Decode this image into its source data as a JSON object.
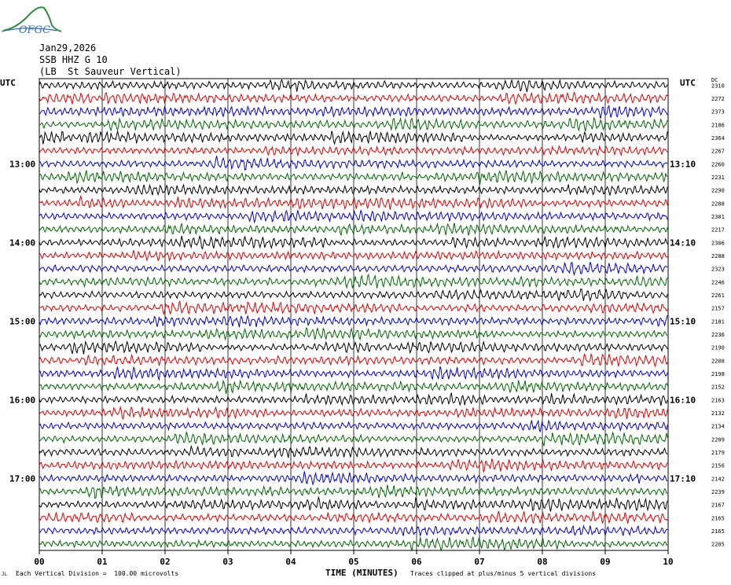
{
  "logo_text": "OFGC",
  "header": {
    "date": "Jan29,2026",
    "channel": "SSB HHZ G 10",
    "station": "(LB  St Sauveur Vertical)"
  },
  "left_axis_label": "UTC",
  "right_axis_label": "UTC",
  "dc_label": "DC",
  "footer": {
    "x_axis_title": "TIME (MINUTES)",
    "scale_note": "Each Vertical Division =  100.00 microvolts",
    "clip_note": "Traces clipped at plus/minus 5 vertical divisions",
    "corner_mark": "JL"
  },
  "colors": [
    "#000000",
    "#dd0000",
    "#0000cc",
    "#006600"
  ],
  "chart_data": {
    "type": "line",
    "description_of_traces": "helicorder, 36 rows of 10 minutes",
    "x_ticks": [
      "00",
      "01",
      "02",
      "03",
      "04",
      "05",
      "06",
      "07",
      "08",
      "09",
      "10"
    ],
    "xlim": [
      0,
      10
    ],
    "rows": 36,
    "left_time_labels": [
      "13:00",
      "14:00",
      "15:00",
      "16:00",
      "17:00"
    ],
    "left_label_rows": [
      6,
      12,
      18,
      24,
      30
    ],
    "right_time_labels": [
      "13:10",
      "14:10",
      "15:10",
      "16:10",
      "17:10"
    ],
    "right_label_rows": [
      6,
      12,
      18,
      24,
      30
    ],
    "dc_offsets": [
      "2310",
      "2272",
      "2373",
      "2186",
      "2364",
      "2267",
      "2260",
      "2231",
      "2290",
      "2288",
      "2301",
      "2217",
      "2306",
      "2288",
      "2323",
      "2246",
      "2261",
      "2157",
      "2181",
      "2236",
      "2190",
      "2208",
      "2198",
      "2152",
      "2163",
      "2132",
      "2134",
      "2209",
      "2179",
      "2156",
      "2142",
      "2239",
      "2167",
      "2165",
      "2165",
      "2205"
    ]
  }
}
